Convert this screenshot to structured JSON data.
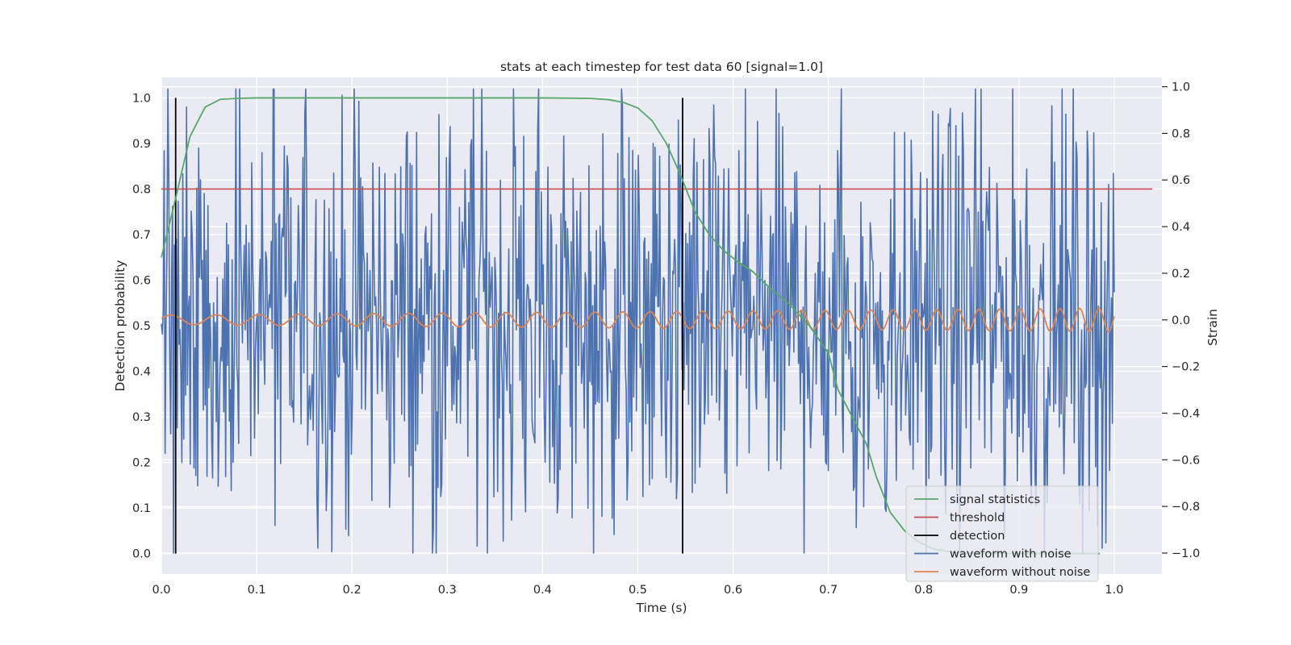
{
  "chart_data": {
    "type": "line",
    "title": "stats at each timestep for test data 60 [signal=1.0]",
    "xlabel": "Time (s)",
    "ylabel": "Detection probability",
    "y2label": "Strain",
    "xlim": [
      0.0,
      1.05
    ],
    "ylim": [
      -0.045,
      1.045
    ],
    "y2lim": [
      -1.09,
      1.04
    ],
    "xticks": [
      "0.0",
      "0.1",
      "0.2",
      "0.3",
      "0.4",
      "0.5",
      "0.6",
      "0.7",
      "0.8",
      "0.9",
      "1.0"
    ],
    "yticks": [
      "0.0",
      "0.1",
      "0.2",
      "0.3",
      "0.4",
      "0.5",
      "0.6",
      "0.7",
      "0.8",
      "0.9",
      "1.0"
    ],
    "y2ticks": [
      "−1.0",
      "−0.8",
      "−0.6",
      "−0.4",
      "−0.2",
      "0.0",
      "0.2",
      "0.4",
      "0.6",
      "0.8",
      "1.0"
    ],
    "grid": true,
    "legend_position": "lower-right",
    "series": [
      {
        "name": "signal statistics",
        "axis": "left",
        "color": "#55a868",
        "x": [
          0.0,
          0.015,
          0.03,
          0.046,
          0.062,
          0.08,
          0.1,
          0.2,
          0.3,
          0.4,
          0.45,
          0.47,
          0.485,
          0.5,
          0.515,
          0.53,
          0.545,
          0.56,
          0.575,
          0.59,
          0.605,
          0.62,
          0.64,
          0.66,
          0.68,
          0.7,
          0.71,
          0.725,
          0.74,
          0.75,
          0.765,
          0.78,
          0.795,
          0.81,
          0.83,
          0.85,
          0.9,
          0.95,
          0.985
        ],
        "y": [
          0.65,
          0.78,
          0.915,
          0.98,
          0.997,
          0.999,
          1.0,
          1.0,
          1.0,
          1.0,
          0.999,
          0.996,
          0.99,
          0.978,
          0.95,
          0.9,
          0.83,
          0.75,
          0.7,
          0.665,
          0.64,
          0.62,
          0.58,
          0.545,
          0.5,
          0.44,
          0.36,
          0.3,
          0.24,
          0.17,
          0.09,
          0.05,
          0.025,
          0.01,
          0.003,
          0.001,
          0.0,
          0.0,
          0.0
        ]
      },
      {
        "name": "threshold",
        "axis": "left",
        "color": "#c44e52",
        "x": [
          0.0,
          1.04
        ],
        "y": [
          0.8,
          0.8
        ]
      },
      {
        "name": "detection",
        "axis": "left",
        "color": "#000000",
        "vlines_x": [
          0.015,
          0.547
        ],
        "y": [
          0.0,
          1.0
        ]
      },
      {
        "name": "waveform with noise",
        "axis": "right",
        "color": "#4c72b0",
        "x_range": [
          0.0,
          1.0
        ],
        "n_points": 1024,
        "values_shown": "random-looking noise, roughly between -1.0 and 1.0 strain"
      },
      {
        "name": "waveform without noise",
        "axis": "right",
        "color": "#dd8452",
        "x_range": [
          0.0,
          1.0
        ],
        "values_shown": "chirp-like oscillation around 0.0, amplitude growing from about 0.02 to 0.05 strain, frequency increasing with time"
      }
    ]
  }
}
